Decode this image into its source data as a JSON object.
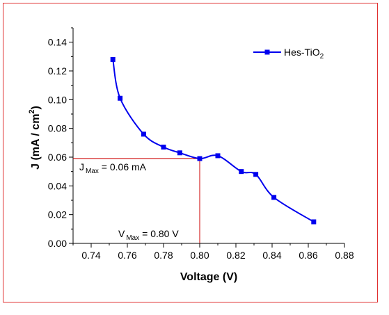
{
  "chart_data": {
    "type": "line",
    "xlabel": "Voltage (V)",
    "ylabel": "J (mA / cm 2)",
    "ylabel_parts": {
      "main": "J (mA / cm",
      "sup": "2",
      "end": ")"
    },
    "xlim": [
      0.73,
      0.88
    ],
    "ylim": [
      0.0,
      0.15
    ],
    "xticks": [
      "0.74",
      "0.76",
      "0.78",
      "0.80",
      "0.82",
      "0.84",
      "0.86",
      "0.88"
    ],
    "yticks": [
      "0.00",
      "0.02",
      "0.04",
      "0.06",
      "0.08",
      "0.10",
      "0.12",
      "0.14"
    ],
    "legend_position": "top-right",
    "grid": false,
    "series": [
      {
        "name": "Hes-TiO2",
        "name_parts": {
          "main": "Hes-TiO",
          "sub": "2"
        },
        "color": "#0000ee",
        "marker": "square",
        "x": [
          0.752,
          0.756,
          0.769,
          0.78,
          0.789,
          0.8,
          0.81,
          0.823,
          0.831,
          0.841,
          0.863
        ],
        "y": [
          0.128,
          0.101,
          0.076,
          0.067,
          0.063,
          0.059,
          0.061,
          0.05,
          0.048,
          0.032,
          0.015
        ]
      }
    ],
    "annotations": {
      "max_point": {
        "x": 0.8,
        "y": 0.059,
        "color": "#cc0000"
      },
      "j_max": {
        "prefix": "J",
        "sub": "Max",
        "text": " = 0.06 mA"
      },
      "v_max": {
        "prefix": "V",
        "sub": "Max",
        "text": " = 0.80 V"
      }
    }
  },
  "colors": {
    "frame": "#e03030",
    "guide": "#cc0000",
    "series": "#0000ee"
  }
}
